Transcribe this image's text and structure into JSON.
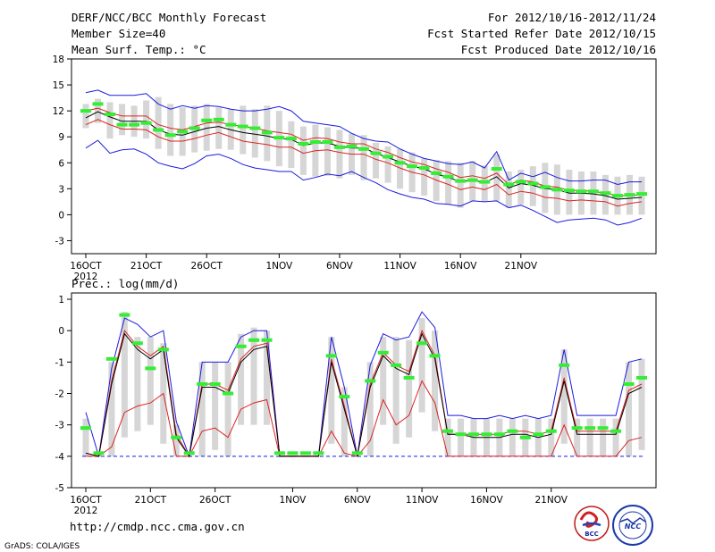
{
  "header": {
    "title": "DERF/NCC/BCC Monthly Forecast",
    "member_size": "Member Size=40",
    "variable": "Mean Surf. Temp.: °C",
    "forecast_period": "For 2012/10/16-2012/11/24",
    "started_refer_date": "Fcst Started Refer Date 2012/10/15",
    "produced_date": "Fcst Produced Date 2012/10/16"
  },
  "footer": {
    "url": "http://cmdp.ncc.cma.gov.cn",
    "grads_credit": "GrADS: COLA/IGES",
    "logo_bcc_text": "BCC",
    "logo_ncc_text": "NCC"
  },
  "colors": {
    "ensemble_mean": "#000000",
    "spread_inner": "#dd2222",
    "spread_outer": "#1a1adf",
    "observation_marker": "#33ee33",
    "member_range_bar": "#d6d6d6",
    "baseline_dash": "#1a1adf"
  },
  "chart_data": [
    {
      "type": "line",
      "name": "temperature",
      "title": "Mean Surf. Temp.: °C",
      "ylim": [
        -4.5,
        18
      ],
      "yticks": [
        18,
        15,
        12,
        9,
        6,
        3,
        0,
        -3
      ],
      "ytick_labels": [
        "18",
        "15",
        "12",
        "9",
        "6",
        "3",
        "0",
        "-3"
      ],
      "x_tick_days": [
        0,
        5,
        10,
        16,
        21,
        26,
        31,
        36
      ],
      "x_tick_labels": [
        "16OCT",
        "21OCT",
        "26OCT",
        "1NOV",
        "6NOV",
        "11NOV",
        "16NOV",
        "21NOV"
      ],
      "x_sub_label": "2012",
      "series": [
        {
          "name": "ensemble mean",
          "values": [
            11.2,
            11.9,
            11.3,
            10.8,
            10.8,
            10.8,
            9.8,
            9.3,
            9.2,
            9.6,
            10.0,
            10.2,
            9.8,
            9.5,
            9.3,
            9.1,
            8.8,
            8.7,
            8.0,
            8.3,
            8.3,
            7.9,
            7.7,
            7.7,
            7.1,
            6.6,
            6.1,
            5.6,
            5.3,
            4.7,
            4.3,
            3.8,
            4.0,
            3.7,
            4.4,
            3.1,
            3.6,
            3.4,
            3.0,
            2.9,
            2.5,
            2.5,
            2.4,
            2.2,
            1.8,
            1.9,
            2.0
          ]
        },
        {
          "name": "upper inner bound",
          "values": [
            12.0,
            12.3,
            11.8,
            11.4,
            11.4,
            11.4,
            10.4,
            10.0,
            9.8,
            10.2,
            10.6,
            10.7,
            10.4,
            10.2,
            10.0,
            9.7,
            9.5,
            9.3,
            8.6,
            8.9,
            8.8,
            8.4,
            8.2,
            8.2,
            7.6,
            7.2,
            6.6,
            6.1,
            5.8,
            5.3,
            4.9,
            4.3,
            4.5,
            4.2,
            4.8,
            3.5,
            4.0,
            3.8,
            3.3,
            3.2,
            2.8,
            2.8,
            2.7,
            2.5,
            2.2,
            2.2,
            2.3
          ]
        },
        {
          "name": "lower inner bound",
          "values": [
            10.4,
            11.0,
            10.4,
            9.9,
            9.9,
            9.8,
            9.0,
            8.5,
            8.5,
            8.8,
            9.2,
            9.5,
            9.0,
            8.5,
            8.3,
            8.1,
            7.8,
            7.8,
            7.1,
            7.4,
            7.5,
            7.2,
            7.0,
            7.0,
            6.4,
            6.0,
            5.4,
            4.9,
            4.6,
            4.0,
            3.5,
            2.9,
            3.2,
            2.9,
            3.5,
            2.3,
            2.7,
            2.5,
            2.0,
            1.9,
            1.6,
            1.7,
            1.6,
            1.5,
            1.0,
            1.3,
            1.5
          ]
        },
        {
          "name": "upper outer bound",
          "values": [
            14.1,
            14.4,
            13.8,
            13.8,
            13.8,
            14.0,
            12.8,
            12.2,
            12.6,
            12.3,
            12.6,
            12.5,
            12.2,
            12.0,
            12.0,
            12.2,
            12.5,
            12.0,
            10.8,
            10.6,
            10.4,
            10.2,
            9.4,
            8.8,
            8.5,
            8.4,
            7.6,
            7.0,
            6.5,
            6.2,
            5.9,
            5.8,
            6.1,
            5.4,
            7.3,
            4.0,
            4.8,
            4.4,
            4.9,
            4.3,
            3.9,
            3.9,
            4.0,
            4.0,
            3.5,
            3.8,
            3.8
          ]
        },
        {
          "name": "lower outer bound",
          "values": [
            7.7,
            8.6,
            7.1,
            7.5,
            7.6,
            7.0,
            6.0,
            5.6,
            5.3,
            5.9,
            6.8,
            7.0,
            6.5,
            5.8,
            5.4,
            5.2,
            5.0,
            5.0,
            4.0,
            4.3,
            4.7,
            4.5,
            5.0,
            4.3,
            3.7,
            2.9,
            2.4,
            2.0,
            1.8,
            1.3,
            1.2,
            1.0,
            1.6,
            1.5,
            1.6,
            0.8,
            1.1,
            0.5,
            -0.2,
            -0.9,
            -0.6,
            -0.5,
            -0.4,
            -0.6,
            -1.2,
            -0.9,
            -0.4
          ]
        },
        {
          "name": "observed",
          "values": [
            12.0,
            12.8,
            11.6,
            10.4,
            10.4,
            10.6,
            9.8,
            9.2,
            9.6,
            10.0,
            10.9,
            11.0,
            10.4,
            10.2,
            10.0,
            9.5,
            8.9,
            8.8,
            8.2,
            8.4,
            8.4,
            7.8,
            7.9,
            7.6,
            7.1,
            6.7,
            6.0,
            5.6,
            5.4,
            4.8,
            4.4,
            3.9,
            4.0,
            3.8,
            5.3,
            3.5,
            3.8,
            3.6,
            3.2,
            2.9,
            2.8,
            2.7,
            2.7,
            2.5,
            2.2,
            2.3,
            2.4
          ]
        }
      ],
      "member_range_bars": {
        "low": [
          10.0,
          10.6,
          8.8,
          9.2,
          9.0,
          8.8,
          7.6,
          6.8,
          6.8,
          7.2,
          7.4,
          7.6,
          7.5,
          7.0,
          6.6,
          6.2,
          5.6,
          5.4,
          4.6,
          4.4,
          4.5,
          4.2,
          4.6,
          4.0,
          4.2,
          3.7,
          3.0,
          2.6,
          2.2,
          1.6,
          1.2,
          0.8,
          1.6,
          1.5,
          1.6,
          0.8,
          1.2,
          1.0,
          0.2,
          0.0,
          0.0,
          0.0,
          0.0,
          0.0,
          0.0,
          0.0,
          0.0
        ],
        "high": [
          12.8,
          13.4,
          13.0,
          12.8,
          12.6,
          13.2,
          13.6,
          12.8,
          12.4,
          12.6,
          12.8,
          12.4,
          12.2,
          12.6,
          12.2,
          12.6,
          12.0,
          10.8,
          10.2,
          10.4,
          10.1,
          9.8,
          9.4,
          9.2,
          8.3,
          7.9,
          7.6,
          7.2,
          6.5,
          6.3,
          6.2,
          6.0,
          6.2,
          5.7,
          7.0,
          5.0,
          5.2,
          5.6,
          6.0,
          5.8,
          5.2,
          5.0,
          5.0,
          4.6,
          4.4,
          4.6,
          4.4
        ]
      }
    },
    {
      "type": "line",
      "name": "precipitation",
      "title": "Prec.: log(mm/d)",
      "ylim": [
        -5,
        1.2
      ],
      "yticks": [
        1,
        0,
        -1,
        -2,
        -3,
        -4,
        -5
      ],
      "ytick_labels": [
        "1",
        "0",
        "-1",
        "-2",
        "-3",
        "-4",
        "-5"
      ],
      "baseline": -4,
      "x_tick_days": [
        0,
        5,
        10,
        16,
        21,
        26,
        31,
        36
      ],
      "x_tick_labels": [
        "16OCT",
        "21OCT",
        "26OCT",
        "1NOV",
        "6NOV",
        "11NOV",
        "16NOV",
        "21NOV"
      ],
      "x_sub_label": "2012",
      "series": [
        {
          "name": "ensemble mean",
          "values": [
            -3.9,
            -4.0,
            -1.7,
            -0.1,
            -0.6,
            -0.9,
            -0.6,
            -3.4,
            -4.0,
            -1.8,
            -1.8,
            -2.0,
            -1.0,
            -0.6,
            -0.5,
            -4.0,
            -4.0,
            -4.0,
            -4.0,
            -1.0,
            -2.5,
            -4.0,
            -1.8,
            -0.8,
            -1.2,
            -1.4,
            -0.1,
            -0.9,
            -3.3,
            -3.3,
            -3.4,
            -3.4,
            -3.4,
            -3.3,
            -3.3,
            -3.4,
            -3.3,
            -1.6,
            -3.3,
            -3.3,
            -3.3,
            -3.3,
            -2.0,
            -1.8
          ]
        },
        {
          "name": "upper inner bound",
          "values": [
            -3.9,
            -4.0,
            -1.6,
            0.0,
            -0.5,
            -0.8,
            -0.5,
            -3.3,
            -4.0,
            -1.7,
            -1.7,
            -1.9,
            -0.9,
            -0.5,
            -0.4,
            -4.0,
            -4.0,
            -4.0,
            -4.0,
            -0.9,
            -2.4,
            -4.0,
            -1.7,
            -0.7,
            -1.1,
            -1.3,
            0.0,
            -0.8,
            -3.3,
            -3.3,
            -3.3,
            -3.3,
            -3.3,
            -3.2,
            -3.2,
            -3.3,
            -3.2,
            -1.5,
            -3.2,
            -3.2,
            -3.2,
            -3.2,
            -1.9,
            -1.7
          ]
        },
        {
          "name": "lower inner bound",
          "values": [
            -4.0,
            -4.0,
            -3.7,
            -2.6,
            -2.4,
            -2.3,
            -2.0,
            -4.0,
            -4.0,
            -3.2,
            -3.1,
            -3.4,
            -2.5,
            -2.3,
            -2.2,
            -4.0,
            -4.0,
            -4.0,
            -4.0,
            -3.2,
            -3.9,
            -4.0,
            -3.5,
            -2.2,
            -3.0,
            -2.7,
            -1.6,
            -2.3,
            -4.0,
            -4.0,
            -4.0,
            -4.0,
            -4.0,
            -4.0,
            -4.0,
            -4.0,
            -4.0,
            -3.0,
            -4.0,
            -4.0,
            -4.0,
            -4.0,
            -3.5,
            -3.4
          ]
        },
        {
          "name": "upper outer bound",
          "values": [
            -2.6,
            -4.0,
            -1.2,
            0.4,
            0.2,
            -0.2,
            0.0,
            -2.9,
            -4.0,
            -1.0,
            -1.0,
            -1.0,
            -0.2,
            0.0,
            0.0,
            -4.0,
            -4.0,
            -4.0,
            -4.0,
            -0.2,
            -1.8,
            -4.0,
            -1.1,
            -0.1,
            -0.3,
            -0.2,
            0.6,
            0.1,
            -2.7,
            -2.7,
            -2.8,
            -2.8,
            -2.7,
            -2.8,
            -2.7,
            -2.8,
            -2.7,
            -0.6,
            -2.7,
            -2.7,
            -2.7,
            -2.7,
            -1.0,
            -0.9
          ]
        },
        {
          "name": "lower outer bound",
          "values": [
            -4.0,
            -4.0,
            -4.0,
            -4.0,
            -4.0,
            -4.0,
            -4.0,
            -4.0,
            -4.0,
            -4.0,
            -4.0,
            -4.0,
            -4.0,
            -4.0,
            -4.0,
            -4.0,
            -4.0,
            -4.0,
            -4.0,
            -4.0,
            -4.0,
            -4.0,
            -4.0,
            -4.0,
            -4.0,
            -4.0,
            -4.0,
            -4.0,
            -4.0,
            -4.0,
            -4.0,
            -4.0,
            -4.0,
            -4.0,
            -4.0,
            -4.0,
            -4.0,
            -4.0,
            -4.0,
            -4.0,
            -4.0,
            -4.0,
            -4.0,
            -4.0
          ]
        },
        {
          "name": "observed",
          "values": [
            -3.1,
            -3.9,
            -0.9,
            0.5,
            -0.4,
            -1.2,
            -0.6,
            -3.4,
            -3.9,
            -1.7,
            -1.7,
            -2.0,
            -0.5,
            -0.3,
            -0.3,
            -3.9,
            -3.9,
            -3.9,
            -3.9,
            -0.8,
            -2.1,
            -3.9,
            -1.6,
            -0.7,
            -1.1,
            -1.5,
            -0.4,
            -0.8,
            -3.2,
            -3.3,
            -3.3,
            -3.3,
            -3.3,
            -3.2,
            -3.4,
            -3.3,
            -3.2,
            -1.1,
            -3.1,
            -3.1,
            -3.1,
            -3.2,
            -1.7,
            -1.5
          ]
        }
      ],
      "member_range_bars": {
        "low": [
          -4.0,
          -4.0,
          -4.0,
          -3.4,
          -3.2,
          -3.0,
          -3.6,
          -4.0,
          -4.0,
          -4.0,
          -3.8,
          -4.0,
          -3.0,
          -3.0,
          -3.0,
          -4.0,
          -4.0,
          -4.0,
          -4.0,
          -3.6,
          -4.0,
          -4.0,
          -4.0,
          -3.0,
          -3.6,
          -3.4,
          -2.6,
          -3.2,
          -4.0,
          -4.0,
          -4.0,
          -4.0,
          -4.0,
          -4.0,
          -4.0,
          -4.0,
          -4.0,
          -3.6,
          -4.0,
          -4.0,
          -4.0,
          -4.0,
          -4.0,
          -3.8
        ],
        "high": [
          -2.8,
          -4.0,
          -1.0,
          0.6,
          -0.2,
          -0.2,
          -0.4,
          -3.0,
          -4.0,
          -1.0,
          -1.0,
          -1.0,
          -0.1,
          0.1,
          0.0,
          -4.0,
          -4.0,
          -4.0,
          -4.0,
          -0.2,
          -1.8,
          -4.0,
          -1.0,
          -0.2,
          -0.2,
          -0.3,
          0.4,
          0.0,
          -2.8,
          -2.8,
          -2.8,
          -2.8,
          -2.8,
          -2.8,
          -2.8,
          -2.8,
          -2.8,
          -0.6,
          -2.8,
          -2.8,
          -2.8,
          -2.8,
          -1.0,
          -0.9
        ]
      }
    }
  ]
}
